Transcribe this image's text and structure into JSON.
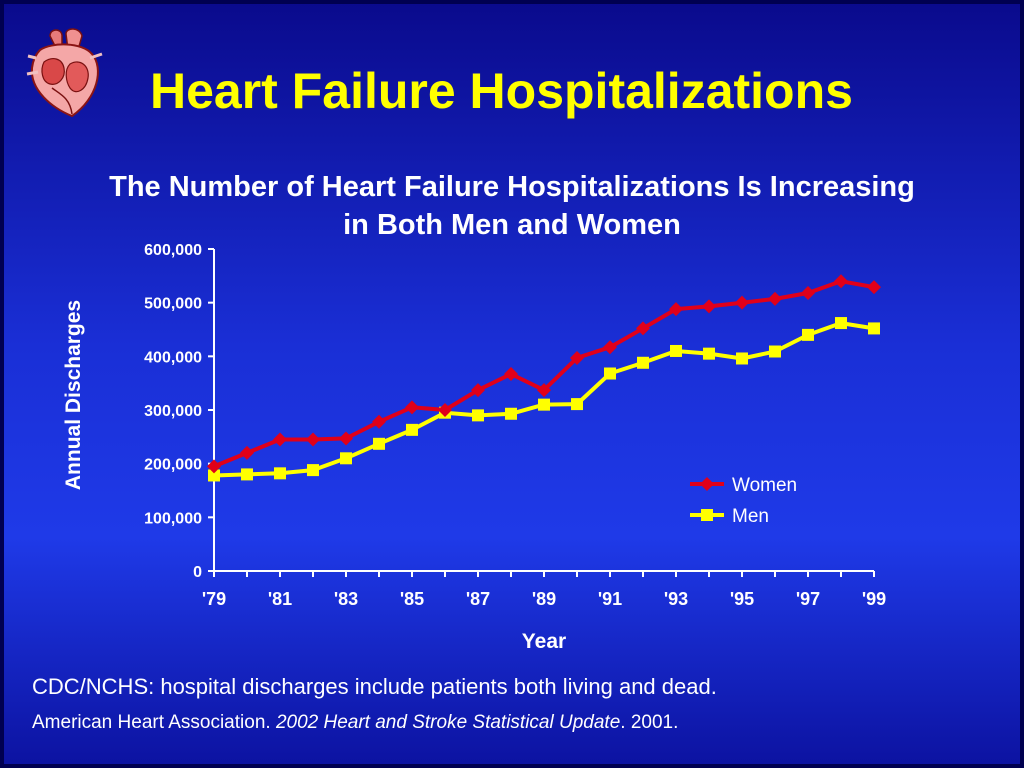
{
  "slide": {
    "title": "Heart Failure Hospitalizations",
    "subtitle_line1": "The Number of Heart Failure Hospitalizations Is Increasing",
    "subtitle_line2": "in Both Men and Women",
    "footnote": "CDC/NCHS: hospital discharges include patients both living and dead.",
    "citation_org": "American Heart Association. ",
    "citation_title": "2002 Heart and Stroke Statistical Update",
    "citation_year": ". 2001."
  },
  "icons": {
    "logo": "heart-anatomy-icon"
  },
  "chart_data": {
    "type": "line",
    "xlabel": "Year",
    "ylabel": "Annual Discharges",
    "ylim": [
      0,
      600000
    ],
    "yticks": [
      0,
      100000,
      200000,
      300000,
      400000,
      500000,
      600000
    ],
    "ytick_labels": [
      "0",
      "100,000",
      "200,000",
      "300,000",
      "400,000",
      "500,000",
      "600,000"
    ],
    "x": [
      1979,
      1980,
      1981,
      1982,
      1983,
      1984,
      1985,
      1986,
      1987,
      1988,
      1989,
      1990,
      1991,
      1992,
      1993,
      1994,
      1995,
      1996,
      1997,
      1998,
      1999
    ],
    "xtick_labels": [
      "'79",
      "'81",
      "'83",
      "'85",
      "'87",
      "'89",
      "'91",
      "'93",
      "'95",
      "'97",
      "'99"
    ],
    "xtick_years": [
      1979,
      1981,
      1983,
      1985,
      1987,
      1989,
      1991,
      1993,
      1995,
      1997,
      1999
    ],
    "legend_position": "right",
    "grid": false,
    "series": [
      {
        "name": "Women",
        "color": "#e0001a",
        "marker": "diamond",
        "values": [
          195000,
          220000,
          245000,
          245000,
          247000,
          278000,
          305000,
          300000,
          337000,
          367000,
          337000,
          397000,
          417000,
          452000,
          488000,
          493000,
          500000,
          507000,
          518000,
          540000,
          529000
        ]
      },
      {
        "name": "Men",
        "color": "#ffff00",
        "marker": "square",
        "values": [
          178000,
          180000,
          182000,
          188000,
          210000,
          237000,
          263000,
          295000,
          290000,
          293000,
          310000,
          311000,
          368000,
          388000,
          410000,
          405000,
          396000,
          409000,
          440000,
          462000,
          452000
        ]
      }
    ]
  }
}
